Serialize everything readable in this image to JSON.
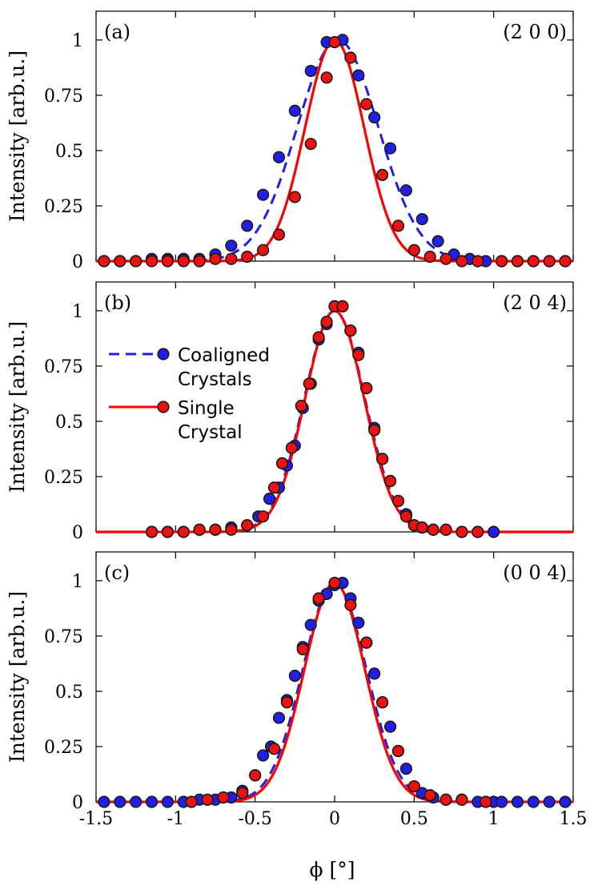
{
  "chart_data": {
    "type": "scatter",
    "x_axis": {
      "label": "ϕ [°]",
      "range": [
        -1.5,
        1.5
      ],
      "ticks": [
        -1.5,
        -1,
        -0.5,
        0,
        0.5,
        1,
        1.5
      ],
      "tick_labels": [
        "-1.5",
        "-1",
        "-0.5",
        "0",
        "0.5",
        "1",
        "1.5"
      ]
    },
    "legend": {
      "placement": "upper-left of panel (b)",
      "entries": [
        {
          "lines": [
            "Coaligned",
            "Crystals"
          ],
          "series": "coaligned"
        },
        {
          "lines": [
            "Single",
            "Crystal"
          ],
          "series": "single"
        }
      ]
    },
    "series_styles": {
      "coaligned": {
        "line_color": "#1f1fe6",
        "marker_color": "#1f1fe6",
        "line_style": "dashed"
      },
      "single": {
        "line_color": "#ff0000",
        "marker_color": "#ee1111",
        "line_style": "solid"
      }
    },
    "panels": [
      {
        "label": "(a)",
        "reflection": "(2 0 0)",
        "ylabel": "Intensity [arb.u.]",
        "ylim": [
          0,
          1.13
        ],
        "yticks": [
          0,
          0.25,
          0.5,
          0.75,
          1
        ],
        "ytick_labels": [
          "0",
          "0.25",
          "0.5",
          "0.75",
          "1"
        ],
        "fits": {
          "coaligned": {
            "center": 0.02,
            "sigma": 0.255,
            "amplitude": 1.0
          },
          "single": {
            "center": 0.0,
            "sigma": 0.185,
            "amplitude": 1.0
          }
        },
        "series": [
          {
            "key": "coaligned",
            "points": [
              [
                -1.45,
                0.0
              ],
              [
                -1.35,
                0.0
              ],
              [
                -1.25,
                0.0
              ],
              [
                -1.15,
                0.01
              ],
              [
                -1.05,
                0.01
              ],
              [
                -0.95,
                0.01
              ],
              [
                -0.85,
                0.01
              ],
              [
                -0.75,
                0.03
              ],
              [
                -0.65,
                0.07
              ],
              [
                -0.55,
                0.16
              ],
              [
                -0.45,
                0.3
              ],
              [
                -0.35,
                0.47
              ],
              [
                -0.25,
                0.68
              ],
              [
                -0.15,
                0.86
              ],
              [
                -0.05,
                0.99
              ],
              [
                0.05,
                1.0
              ],
              [
                0.15,
                0.84
              ],
              [
                0.25,
                0.65
              ],
              [
                0.35,
                0.51
              ],
              [
                0.45,
                0.32
              ],
              [
                0.55,
                0.19
              ],
              [
                0.65,
                0.09
              ],
              [
                0.75,
                0.03
              ],
              [
                0.85,
                0.01
              ],
              [
                0.95,
                0.0
              ],
              [
                1.05,
                0.0
              ],
              [
                1.15,
                0.0
              ],
              [
                1.25,
                0.0
              ],
              [
                1.35,
                0.0
              ],
              [
                1.45,
                0.0
              ]
            ]
          },
          {
            "key": "single",
            "points": [
              [
                -1.45,
                0.0
              ],
              [
                -1.35,
                0.0
              ],
              [
                -1.25,
                0.0
              ],
              [
                -1.15,
                0.0
              ],
              [
                -1.05,
                0.0
              ],
              [
                -0.95,
                0.0
              ],
              [
                -0.85,
                0.0
              ],
              [
                -0.75,
                0.01
              ],
              [
                -0.65,
                0.01
              ],
              [
                -0.55,
                0.02
              ],
              [
                -0.45,
                0.05
              ],
              [
                -0.35,
                0.12
              ],
              [
                -0.25,
                0.29
              ],
              [
                -0.15,
                0.53
              ],
              [
                -0.05,
                0.83
              ],
              [
                0.0,
                0.99
              ],
              [
                0.1,
                0.92
              ],
              [
                0.2,
                0.71
              ],
              [
                0.3,
                0.39
              ],
              [
                0.4,
                0.16
              ],
              [
                0.5,
                0.05
              ],
              [
                0.6,
                0.02
              ],
              [
                0.7,
                0.01
              ],
              [
                0.8,
                0.0
              ],
              [
                0.9,
                0.0
              ],
              [
                1.05,
                0.0
              ],
              [
                1.15,
                0.0
              ],
              [
                1.25,
                0.0
              ],
              [
                1.35,
                0.0
              ],
              [
                1.45,
                0.0
              ]
            ]
          }
        ]
      },
      {
        "label": "(b)",
        "reflection": "(2 0 4)",
        "ylabel": "Intensity [arb.u.]",
        "ylim": [
          0,
          1.13
        ],
        "yticks": [
          0,
          0.25,
          0.5,
          0.75,
          1
        ],
        "ytick_labels": [
          "0",
          "0.25",
          "0.5",
          "0.75",
          "1"
        ],
        "fits": {
          "coaligned": {
            "center": 0.0,
            "sigma": 0.19,
            "amplitude": 1.0
          },
          "single": {
            "center": 0.0,
            "sigma": 0.185,
            "amplitude": 1.0
          }
        },
        "series": [
          {
            "key": "coaligned",
            "points": [
              [
                -1.15,
                0.0
              ],
              [
                -1.05,
                0.0
              ],
              [
                -0.95,
                0.0
              ],
              [
                -0.85,
                0.01
              ],
              [
                -0.75,
                0.01
              ],
              [
                -0.65,
                0.02
              ],
              [
                -0.55,
                0.03
              ],
              [
                -0.48,
                0.07
              ],
              [
                -0.41,
                0.15
              ],
              [
                -0.35,
                0.2
              ],
              [
                -0.3,
                0.3
              ],
              [
                -0.25,
                0.39
              ],
              [
                -0.2,
                0.56
              ],
              [
                -0.15,
                0.67
              ],
              [
                -0.1,
                0.87
              ],
              [
                -0.05,
                0.94
              ],
              [
                0.0,
                1.02
              ],
              [
                0.05,
                1.02
              ],
              [
                0.1,
                0.91
              ],
              [
                0.15,
                0.81
              ],
              [
                0.2,
                0.65
              ],
              [
                0.25,
                0.47
              ],
              [
                0.3,
                0.33
              ],
              [
                0.35,
                0.23
              ],
              [
                0.4,
                0.14
              ],
              [
                0.45,
                0.08
              ],
              [
                0.5,
                0.03
              ],
              [
                0.55,
                0.02
              ],
              [
                0.62,
                0.01
              ],
              [
                0.7,
                0.01
              ],
              [
                0.8,
                0.0
              ],
              [
                0.9,
                0.0
              ],
              [
                1.0,
                0.0
              ]
            ]
          },
          {
            "key": "single",
            "points": [
              [
                -1.15,
                0.0
              ],
              [
                -1.05,
                0.0
              ],
              [
                -0.95,
                0.0
              ],
              [
                -0.85,
                0.01
              ],
              [
                -0.75,
                0.01
              ],
              [
                -0.65,
                0.01
              ],
              [
                -0.55,
                0.03
              ],
              [
                -0.45,
                0.07
              ],
              [
                -0.38,
                0.2
              ],
              [
                -0.33,
                0.31
              ],
              [
                -0.27,
                0.38
              ],
              [
                -0.21,
                0.57
              ],
              [
                -0.16,
                0.67
              ],
              [
                -0.1,
                0.88
              ],
              [
                -0.05,
                0.95
              ],
              [
                0.0,
                1.02
              ],
              [
                0.05,
                1.02
              ],
              [
                0.1,
                0.91
              ],
              [
                0.15,
                0.8
              ],
              [
                0.2,
                0.65
              ],
              [
                0.25,
                0.46
              ],
              [
                0.3,
                0.33
              ],
              [
                0.35,
                0.23
              ],
              [
                0.4,
                0.14
              ],
              [
                0.45,
                0.07
              ],
              [
                0.5,
                0.03
              ],
              [
                0.55,
                0.02
              ],
              [
                0.62,
                0.01
              ],
              [
                0.7,
                0.01
              ],
              [
                0.8,
                0.0
              ],
              [
                0.9,
                0.0
              ]
            ]
          }
        ]
      },
      {
        "label": "(c)",
        "reflection": "(0 0 4)",
        "ylabel": "Intensity [arb.u.]",
        "ylim": [
          0,
          1.13
        ],
        "yticks": [
          0,
          0.25,
          0.5,
          0.75,
          1
        ],
        "ytick_labels": [
          "0",
          "0.25",
          "0.5",
          "0.75",
          "1"
        ],
        "fits": {
          "coaligned": {
            "center": 0.0,
            "sigma": 0.2,
            "amplitude": 0.99
          },
          "single": {
            "center": 0.0,
            "sigma": 0.19,
            "amplitude": 0.99
          }
        },
        "series": [
          {
            "key": "coaligned",
            "points": [
              [
                -1.45,
                0.0
              ],
              [
                -1.35,
                0.0
              ],
              [
                -1.25,
                0.0
              ],
              [
                -1.15,
                0.0
              ],
              [
                -1.05,
                0.0
              ],
              [
                -0.95,
                0.0
              ],
              [
                -0.85,
                0.01
              ],
              [
                -0.75,
                0.01
              ],
              [
                -0.65,
                0.02
              ],
              [
                -0.58,
                0.05
              ],
              [
                -0.5,
                0.12
              ],
              [
                -0.45,
                0.21
              ],
              [
                -0.4,
                0.25
              ],
              [
                -0.35,
                0.38
              ],
              [
                -0.3,
                0.46
              ],
              [
                -0.25,
                0.57
              ],
              [
                -0.2,
                0.7
              ],
              [
                -0.15,
                0.8
              ],
              [
                -0.1,
                0.91
              ],
              [
                -0.05,
                0.94
              ],
              [
                0.0,
                0.98
              ],
              [
                0.05,
                0.99
              ],
              [
                0.1,
                0.92
              ],
              [
                0.15,
                0.81
              ],
              [
                0.2,
                0.72
              ],
              [
                0.25,
                0.58
              ],
              [
                0.3,
                0.45
              ],
              [
                0.35,
                0.34
              ],
              [
                0.4,
                0.23
              ],
              [
                0.45,
                0.15
              ],
              [
                0.5,
                0.07
              ],
              [
                0.55,
                0.04
              ],
              [
                0.62,
                0.02
              ],
              [
                0.7,
                0.01
              ],
              [
                0.8,
                0.01
              ],
              [
                0.9,
                0.0
              ],
              [
                1.0,
                0.0
              ],
              [
                1.05,
                0.0
              ],
              [
                1.15,
                0.0
              ],
              [
                1.25,
                0.0
              ],
              [
                1.35,
                0.0
              ],
              [
                1.45,
                0.0
              ]
            ]
          },
          {
            "key": "single",
            "points": [
              [
                -0.9,
                0.0
              ],
              [
                -0.8,
                0.01
              ],
              [
                -0.7,
                0.02
              ],
              [
                -0.58,
                0.04
              ],
              [
                -0.5,
                0.12
              ],
              [
                -0.38,
                0.24
              ],
              [
                -0.3,
                0.45
              ],
              [
                -0.2,
                0.69
              ],
              [
                -0.1,
                0.92
              ],
              [
                0.0,
                0.99
              ],
              [
                0.1,
                0.89
              ],
              [
                0.2,
                0.72
              ],
              [
                0.3,
                0.45
              ],
              [
                0.4,
                0.23
              ],
              [
                0.5,
                0.07
              ],
              [
                0.6,
                0.03
              ],
              [
                0.7,
                0.01
              ],
              [
                0.8,
                0.01
              ],
              [
                0.95,
                0.0
              ]
            ]
          }
        ]
      }
    ]
  }
}
